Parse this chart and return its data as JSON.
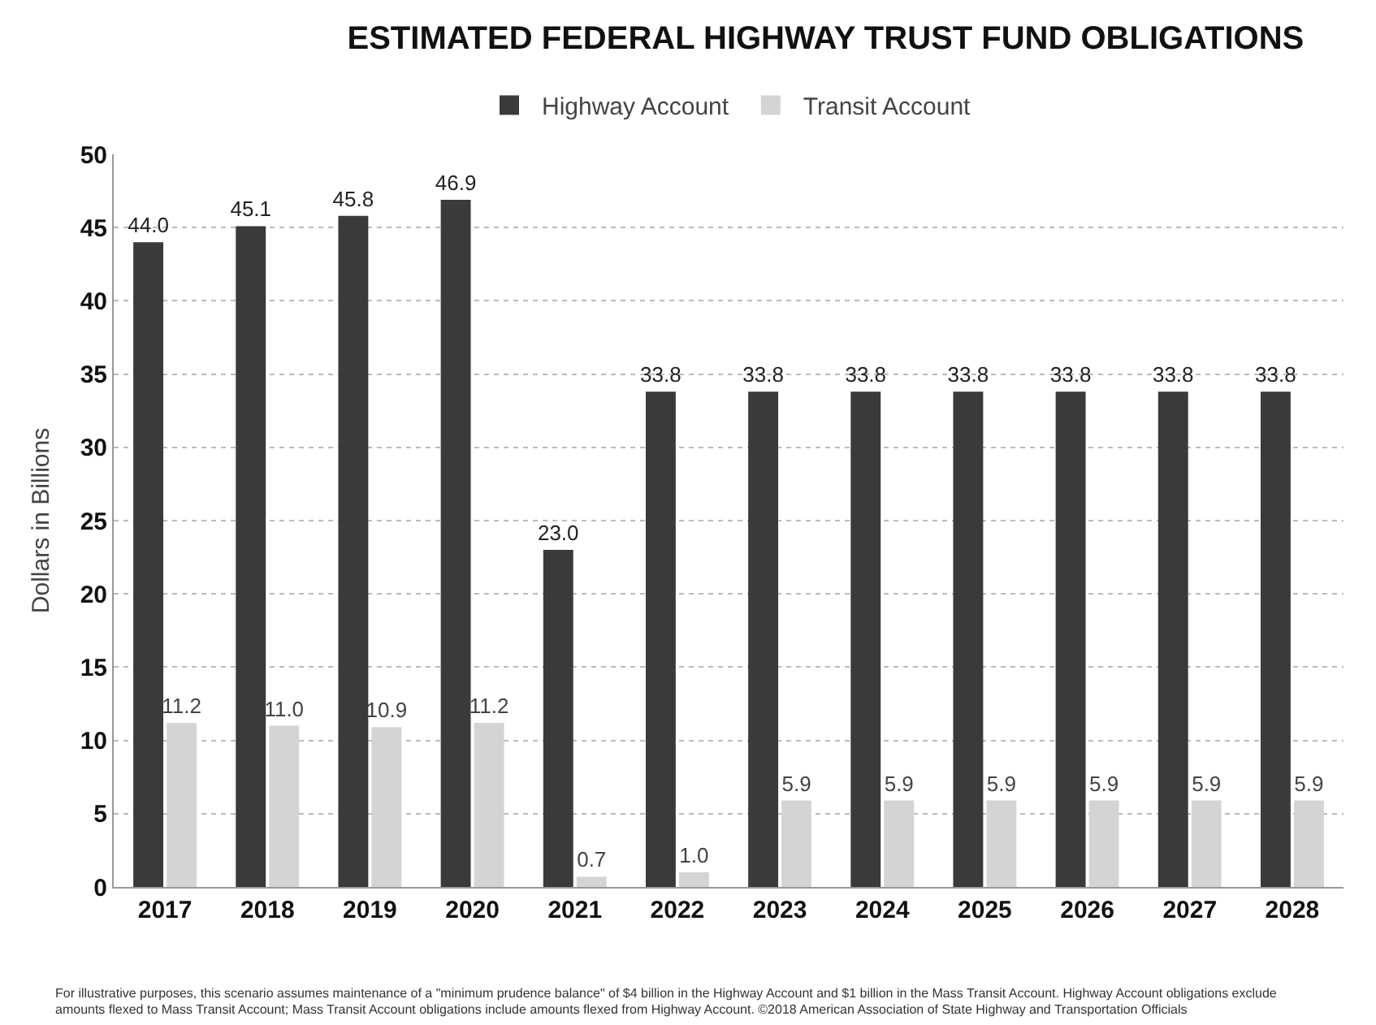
{
  "chart_data": {
    "type": "bar",
    "title": "ESTIMATED FEDERAL HIGHWAY TRUST FUND OBLIGATIONS",
    "ylabel": "Dollars in Billions",
    "categories": [
      "2017",
      "2018",
      "2019",
      "2020",
      "2021",
      "2022",
      "2023",
      "2024",
      "2025",
      "2026",
      "2027",
      "2028"
    ],
    "series": [
      {
        "name": "Highway Account",
        "color": "#3a3a3a",
        "values": [
          44.0,
          45.1,
          45.8,
          46.9,
          23.0,
          33.8,
          33.8,
          33.8,
          33.8,
          33.8,
          33.8,
          33.8
        ],
        "value_labels": [
          "44.0",
          "45.1",
          "45.8",
          "46.9",
          "23.0",
          "33.8",
          "33.8",
          "33.8",
          "33.8",
          "33.8",
          "33.8",
          "33.8"
        ]
      },
      {
        "name": "Transit Account",
        "color": "#d4d4d4",
        "values": [
          11.2,
          11.0,
          10.9,
          11.2,
          0.7,
          1.0,
          5.9,
          5.9,
          5.9,
          5.9,
          5.9,
          5.9
        ],
        "value_labels": [
          "11.2",
          "11.0",
          "10.9",
          "11.2",
          "0.7",
          "1.0",
          "5.9",
          "5.9",
          "5.9",
          "5.9",
          "5.9",
          "5.9"
        ]
      }
    ],
    "ylim": [
      0,
      50
    ],
    "yticks": [
      0,
      5,
      10,
      15,
      20,
      25,
      30,
      35,
      40,
      45,
      50
    ],
    "grid": "y",
    "legend": "top",
    "annotations": [
      "For illustrative purposes, this scenario assumes maintenance of a \"minimum prudence balance\" of $4 billion in the Highway Account and $1 billion in the Mass Transit Account. Highway Account obligations exclude",
      "amounts flexed to Mass Transit Account; Mass Transit Account obligations include amounts flexed from Highway Account. ©2018 American Association of State Highway and Transportation Officials"
    ]
  }
}
